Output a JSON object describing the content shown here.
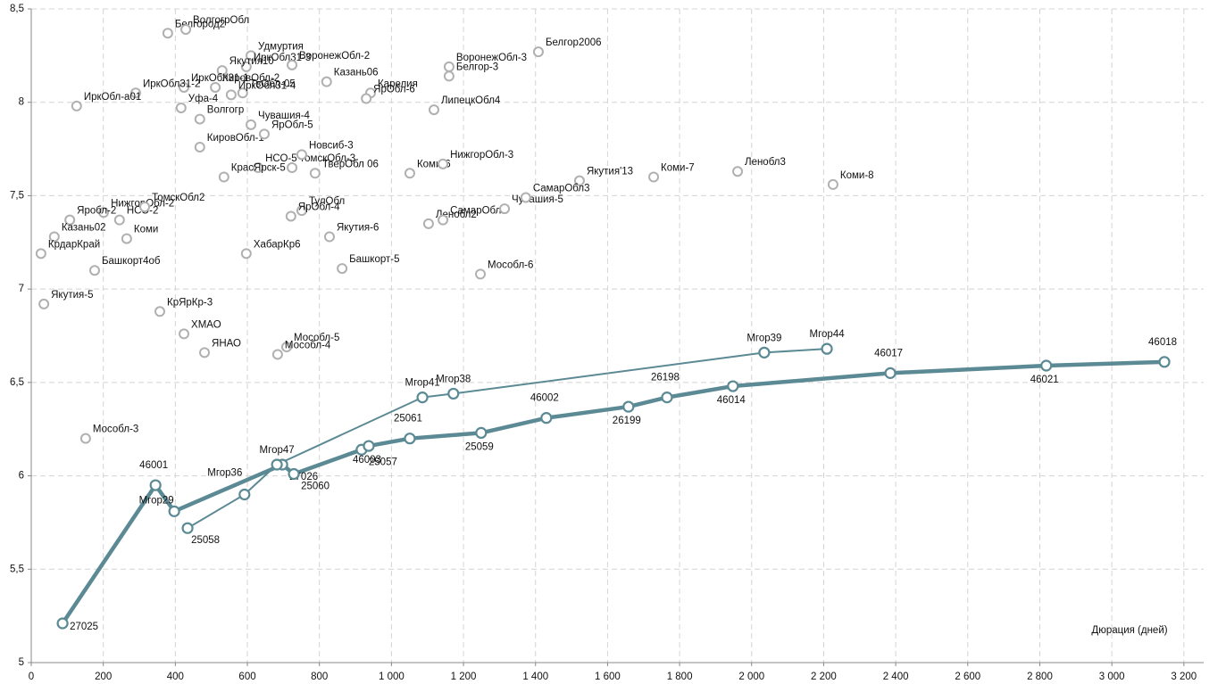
{
  "chart_data": {
    "type": "scatter",
    "x_label": "Дюрация (дней)",
    "xlim": [
      0,
      3255
    ],
    "ylim": [
      5,
      8.5
    ],
    "xticks": [
      0,
      200,
      400,
      600,
      800,
      {
        "value": 1000,
        "label": "1 000"
      },
      {
        "value": 1200,
        "label": "1 200"
      },
      {
        "value": 1400,
        "label": "1 400"
      },
      {
        "value": 1600,
        "label": "1 600"
      },
      {
        "value": 1800,
        "label": "1 800"
      },
      {
        "value": 2000,
        "label": "2 000"
      },
      {
        "value": 2200,
        "label": "2 200"
      },
      {
        "value": 2400,
        "label": "2 400"
      },
      {
        "value": 2600,
        "label": "2 600"
      },
      {
        "value": 2800,
        "label": "2 800"
      },
      {
        "value": 3000,
        "label": "3 000"
      },
      {
        "value": 3200,
        "label": "3 200"
      }
    ],
    "yticks": [
      5,
      {
        "value": 5.5,
        "label": "5,5"
      },
      6,
      {
        "value": 6.5,
        "label": "6,5"
      },
      7,
      {
        "value": 7.5,
        "label": "7,5"
      },
      8,
      {
        "value": 8.5,
        "label": "8,5"
      }
    ],
    "grid": true,
    "series": [
      {
        "color": "#b0b0b0",
        "line": false,
        "line_width": 0,
        "labels": [
          "Белгород2",
          "ВолгогрОбл",
          "Удмуртия",
          "ИркОбл31-3",
          "Якутия10",
          "ИркОбл31-1",
          "КировОбл-2",
          "ТвОбл-05",
          "ИркОбл31-4",
          "ВоронежОбл-2",
          "Казань06",
          "Карелия",
          "ЯрОбл-6",
          "ВоронежОбл-3",
          "Белгор-3",
          "ЛипецкОбл4",
          "Белгор2006",
          "ИркОбл31-2",
          "ИркОбл-а01",
          "Уфа-4",
          "Волгогр",
          "Чувашия-4",
          "КировОбл-1",
          "ЯрОбл-5",
          "ТомскОбл-3",
          "Новсиб-3",
          "ТверОбл 06",
          "НСО-5",
          "КрасЯрск-5",
          "Коми-6",
          "НижгорОбл-3",
          "Якутия'13",
          "Коми-7",
          "Ленобл3",
          "Коми-8",
          "НижгорОбл-2",
          "НСО-2",
          "Яробл-2",
          "ТомскОбл2",
          "Коми",
          "ТулОбл",
          "ЯрОбл-4",
          "Якутия-6",
          "Ленобл2",
          "СамарОбл2",
          "Чувашия-5",
          "СамарОбл3",
          "Казань02",
          "КрдарКрай",
          "Башкорт4об",
          "ХабарКр6",
          "Башкорт-5",
          "Мособл-6",
          "Якутия-5",
          "КрЯрКр-3",
          "ХМАО",
          "ЯНАО",
          "Мособл-5",
          "Мособл-4",
          "Мособл-3"
        ],
        "x": [
          379,
          429,
          610,
          597,
          530,
          424,
          511,
          587,
          555,
          724,
          820,
          942,
          930,
          1160,
          1160,
          1118,
          1408,
          290,
          126,
          416,
          468,
          610,
          468,
          647,
          724,
          751,
          788,
          630,
          535,
          1051,
          1143,
          1522,
          1728,
          1961,
          2226,
          201,
          245,
          107,
          315,
          265,
          751,
          721,
          828,
          1103,
          1143,
          1314,
          1373,
          64,
          27,
          176,
          597,
          863,
          1247,
          35,
          357,
          424,
          481,
          709,
          684,
          151
        ],
        "values": [
          8.37,
          8.39,
          8.25,
          8.19,
          8.17,
          8.08,
          8.08,
          8.05,
          8.04,
          8.2,
          8.11,
          8.05,
          8.02,
          8.19,
          8.14,
          7.96,
          8.27,
          8.05,
          7.98,
          7.97,
          7.91,
          7.88,
          7.76,
          7.83,
          7.65,
          7.72,
          7.62,
          7.65,
          7.6,
          7.62,
          7.67,
          7.58,
          7.6,
          7.63,
          7.56,
          7.41,
          7.37,
          7.37,
          7.44,
          7.27,
          7.42,
          7.39,
          7.28,
          7.35,
          7.37,
          7.43,
          7.49,
          7.28,
          7.19,
          7.1,
          7.19,
          7.11,
          7.08,
          6.92,
          6.88,
          6.76,
          6.66,
          6.69,
          6.65,
          6.2
        ]
      },
      {
        "color": "#5b8a94",
        "line": true,
        "line_width": 4.5,
        "labels": [
          "27025",
          "46001",
          "Мгор29",
          "27026",
          "25060",
          "25057",
          "46003",
          "25061",
          "25059",
          "46002",
          "26199",
          "26198",
          "46014",
          "46017",
          "46021",
          "46018"
        ],
        "x": [
          87,
          345,
          397,
          697,
          729,
          917,
          937,
          1051,
          1249,
          1430,
          1658,
          1765,
          1948,
          2385,
          2818,
          3146
        ],
        "values": [
          5.21,
          5.95,
          5.81,
          6.06,
          6.01,
          6.14,
          6.16,
          6.2,
          6.23,
          6.31,
          6.37,
          6.42,
          6.48,
          6.55,
          6.59,
          6.61
        ]
      },
      {
        "color": "#5b8a94",
        "line": true,
        "line_width": 2,
        "labels": [
          "25058",
          "Мгор36",
          "Мгор47",
          "Мгор41",
          "Мгор38",
          "Мгор39",
          "Мгор44"
        ],
        "x": [
          434,
          592,
          682,
          1086,
          1172,
          2035,
          2209
        ],
        "values": [
          5.72,
          5.9,
          6.06,
          6.42,
          6.44,
          6.66,
          6.68
        ]
      }
    ]
  }
}
